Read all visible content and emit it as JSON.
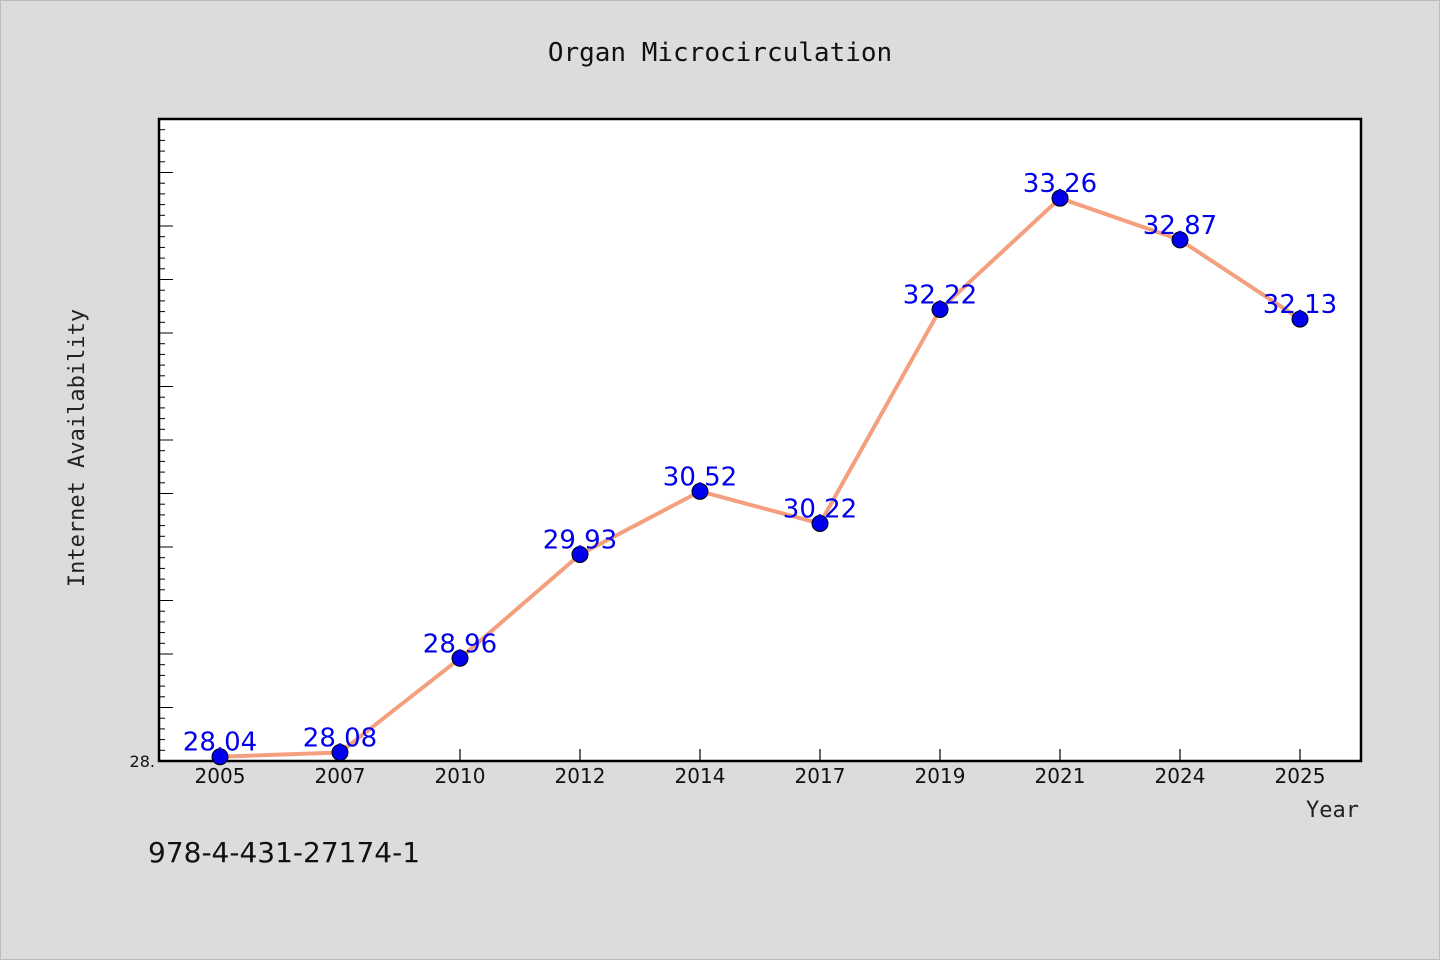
{
  "chart_data": {
    "type": "line",
    "title": "Organ Microcirculation",
    "xlabel": "Year",
    "ylabel": "Internet Availability",
    "categories": [
      "2005",
      "2007",
      "2010",
      "2012",
      "2014",
      "2017",
      "2019",
      "2021",
      "2024",
      "2025"
    ],
    "series": [
      {
        "values": [
          28.04,
          28.08,
          28.96,
          29.93,
          30.52,
          30.22,
          32.22,
          33.26,
          32.87,
          32.13
        ],
        "labels": [
          "28.04",
          "28.08",
          "28.96",
          "29.93",
          "30.52",
          "30.22",
          "32.22",
          "33.26",
          "32.87",
          "32.13"
        ],
        "line_color": "#f4a07e",
        "marker_color": "#0000ee"
      }
    ],
    "ylim": [
      28.0,
      34.0
    ],
    "y_tick_labels": [
      "28."
    ],
    "grid": false,
    "legend": "none"
  },
  "footnote": "978-4-431-27174-1"
}
